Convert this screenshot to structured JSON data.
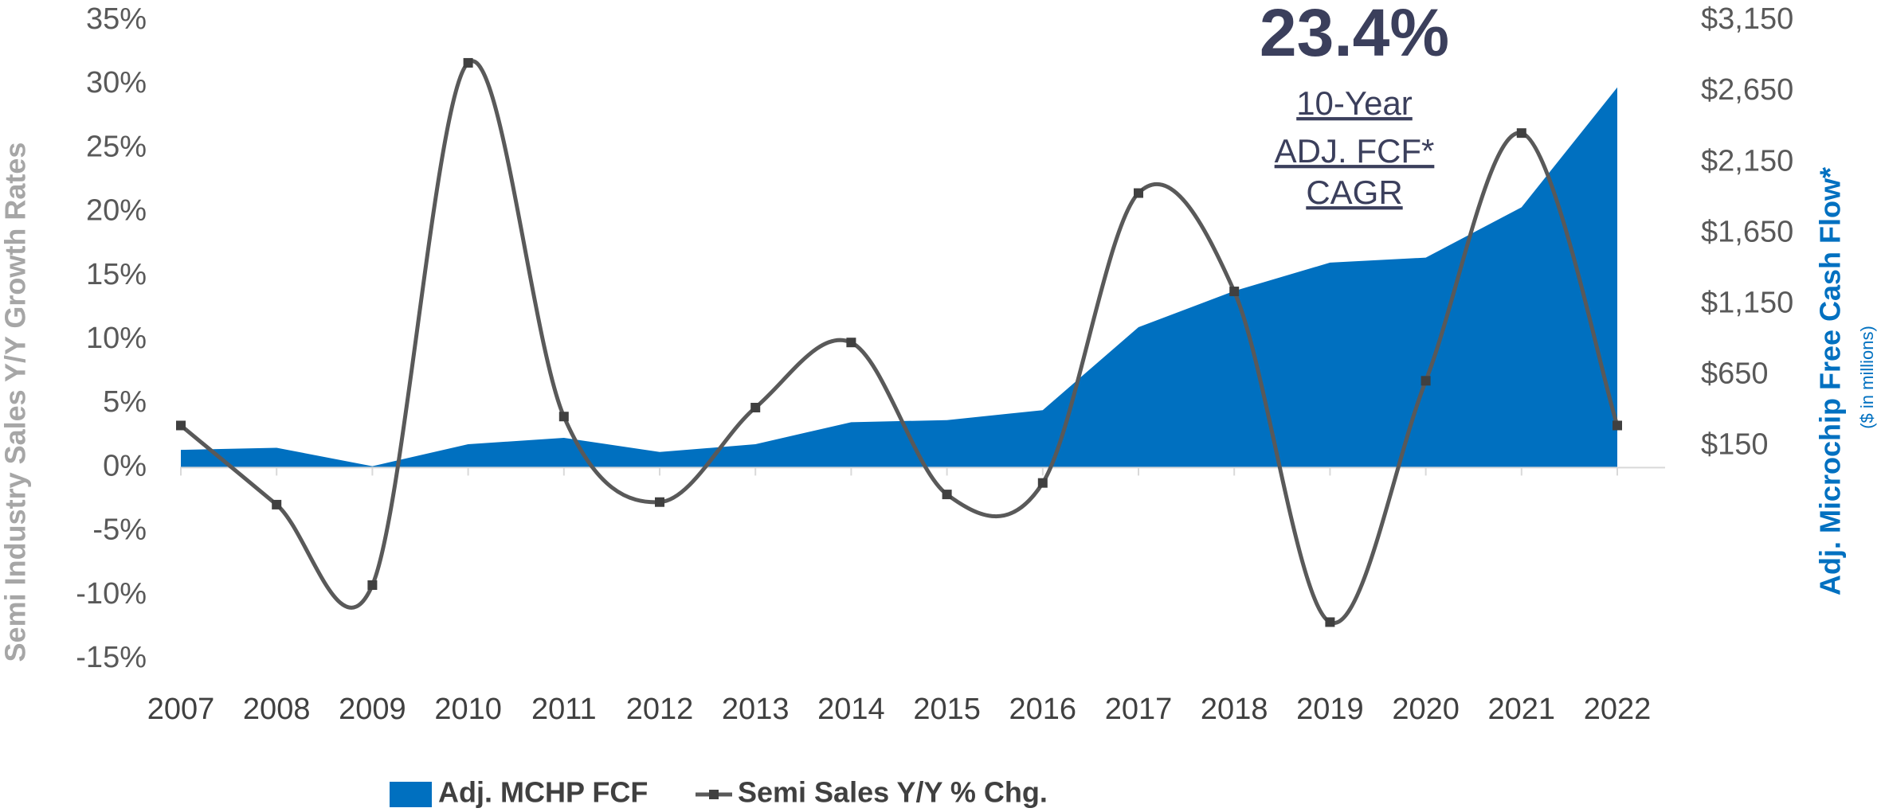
{
  "chart_data": {
    "type": "area-line",
    "annotation_value": "23.4%",
    "annotation_lines": [
      "10-Year",
      "ADJ. FCF*",
      "CAGR"
    ],
    "ylabel": "Semi Industry Sales Y/Y Growth Rates",
    "y2label": "Adj. Microchip Free Cash Flow*",
    "y2sublabel": "($ in millions)",
    "categories": [
      "2007",
      "2008",
      "2009",
      "2010",
      "2011",
      "2012",
      "2013",
      "2014",
      "2015",
      "2016",
      "2017",
      "2018",
      "2019",
      "2020",
      "2021",
      "2022"
    ],
    "series": [
      {
        "name": "Adj. MCHP FCF",
        "type": "area",
        "axis": "y2",
        "color": "#0070c0",
        "values": [
          125,
          140,
          10,
          165,
          210,
          110,
          165,
          320,
          335,
          405,
          990,
          1245,
          1445,
          1480,
          1835,
          2680
        ]
      },
      {
        "name": "Semi Sales Y/Y % Chg.",
        "type": "line",
        "color": "#595959",
        "values": [
          3.3,
          -2.9,
          -9.2,
          31.7,
          4.0,
          -2.7,
          4.7,
          9.8,
          -2.1,
          -1.2,
          21.5,
          13.8,
          -12.1,
          6.8,
          26.2,
          3.3
        ]
      }
    ],
    "ylim": [
      -15,
      35
    ],
    "yticks": [
      {
        "value": -15,
        "label": "-15%"
      },
      {
        "value": -10,
        "label": "-10%"
      },
      {
        "value": -5,
        "label": "-5%"
      },
      {
        "value": 0,
        "label": "0%"
      },
      {
        "value": 5,
        "label": "5%"
      },
      {
        "value": 10,
        "label": "10%"
      },
      {
        "value": 15,
        "label": "15%"
      },
      {
        "value": 20,
        "label": "20%"
      },
      {
        "value": 25,
        "label": "25%"
      },
      {
        "value": 30,
        "label": "30%"
      },
      {
        "value": 35,
        "label": "35%"
      }
    ],
    "y2lim": [
      -1350,
      3150
    ],
    "y2ticks": [
      {
        "value": 150,
        "label": "$150"
      },
      {
        "value": 650,
        "label": "$650"
      },
      {
        "value": 1150,
        "label": "$1,150"
      },
      {
        "value": 1650,
        "label": "$1,650"
      },
      {
        "value": 2150,
        "label": "$2,150"
      },
      {
        "value": 2650,
        "label": "$2,650"
      },
      {
        "value": 3150,
        "label": "$3,150"
      }
    ],
    "legend": "bottom"
  }
}
